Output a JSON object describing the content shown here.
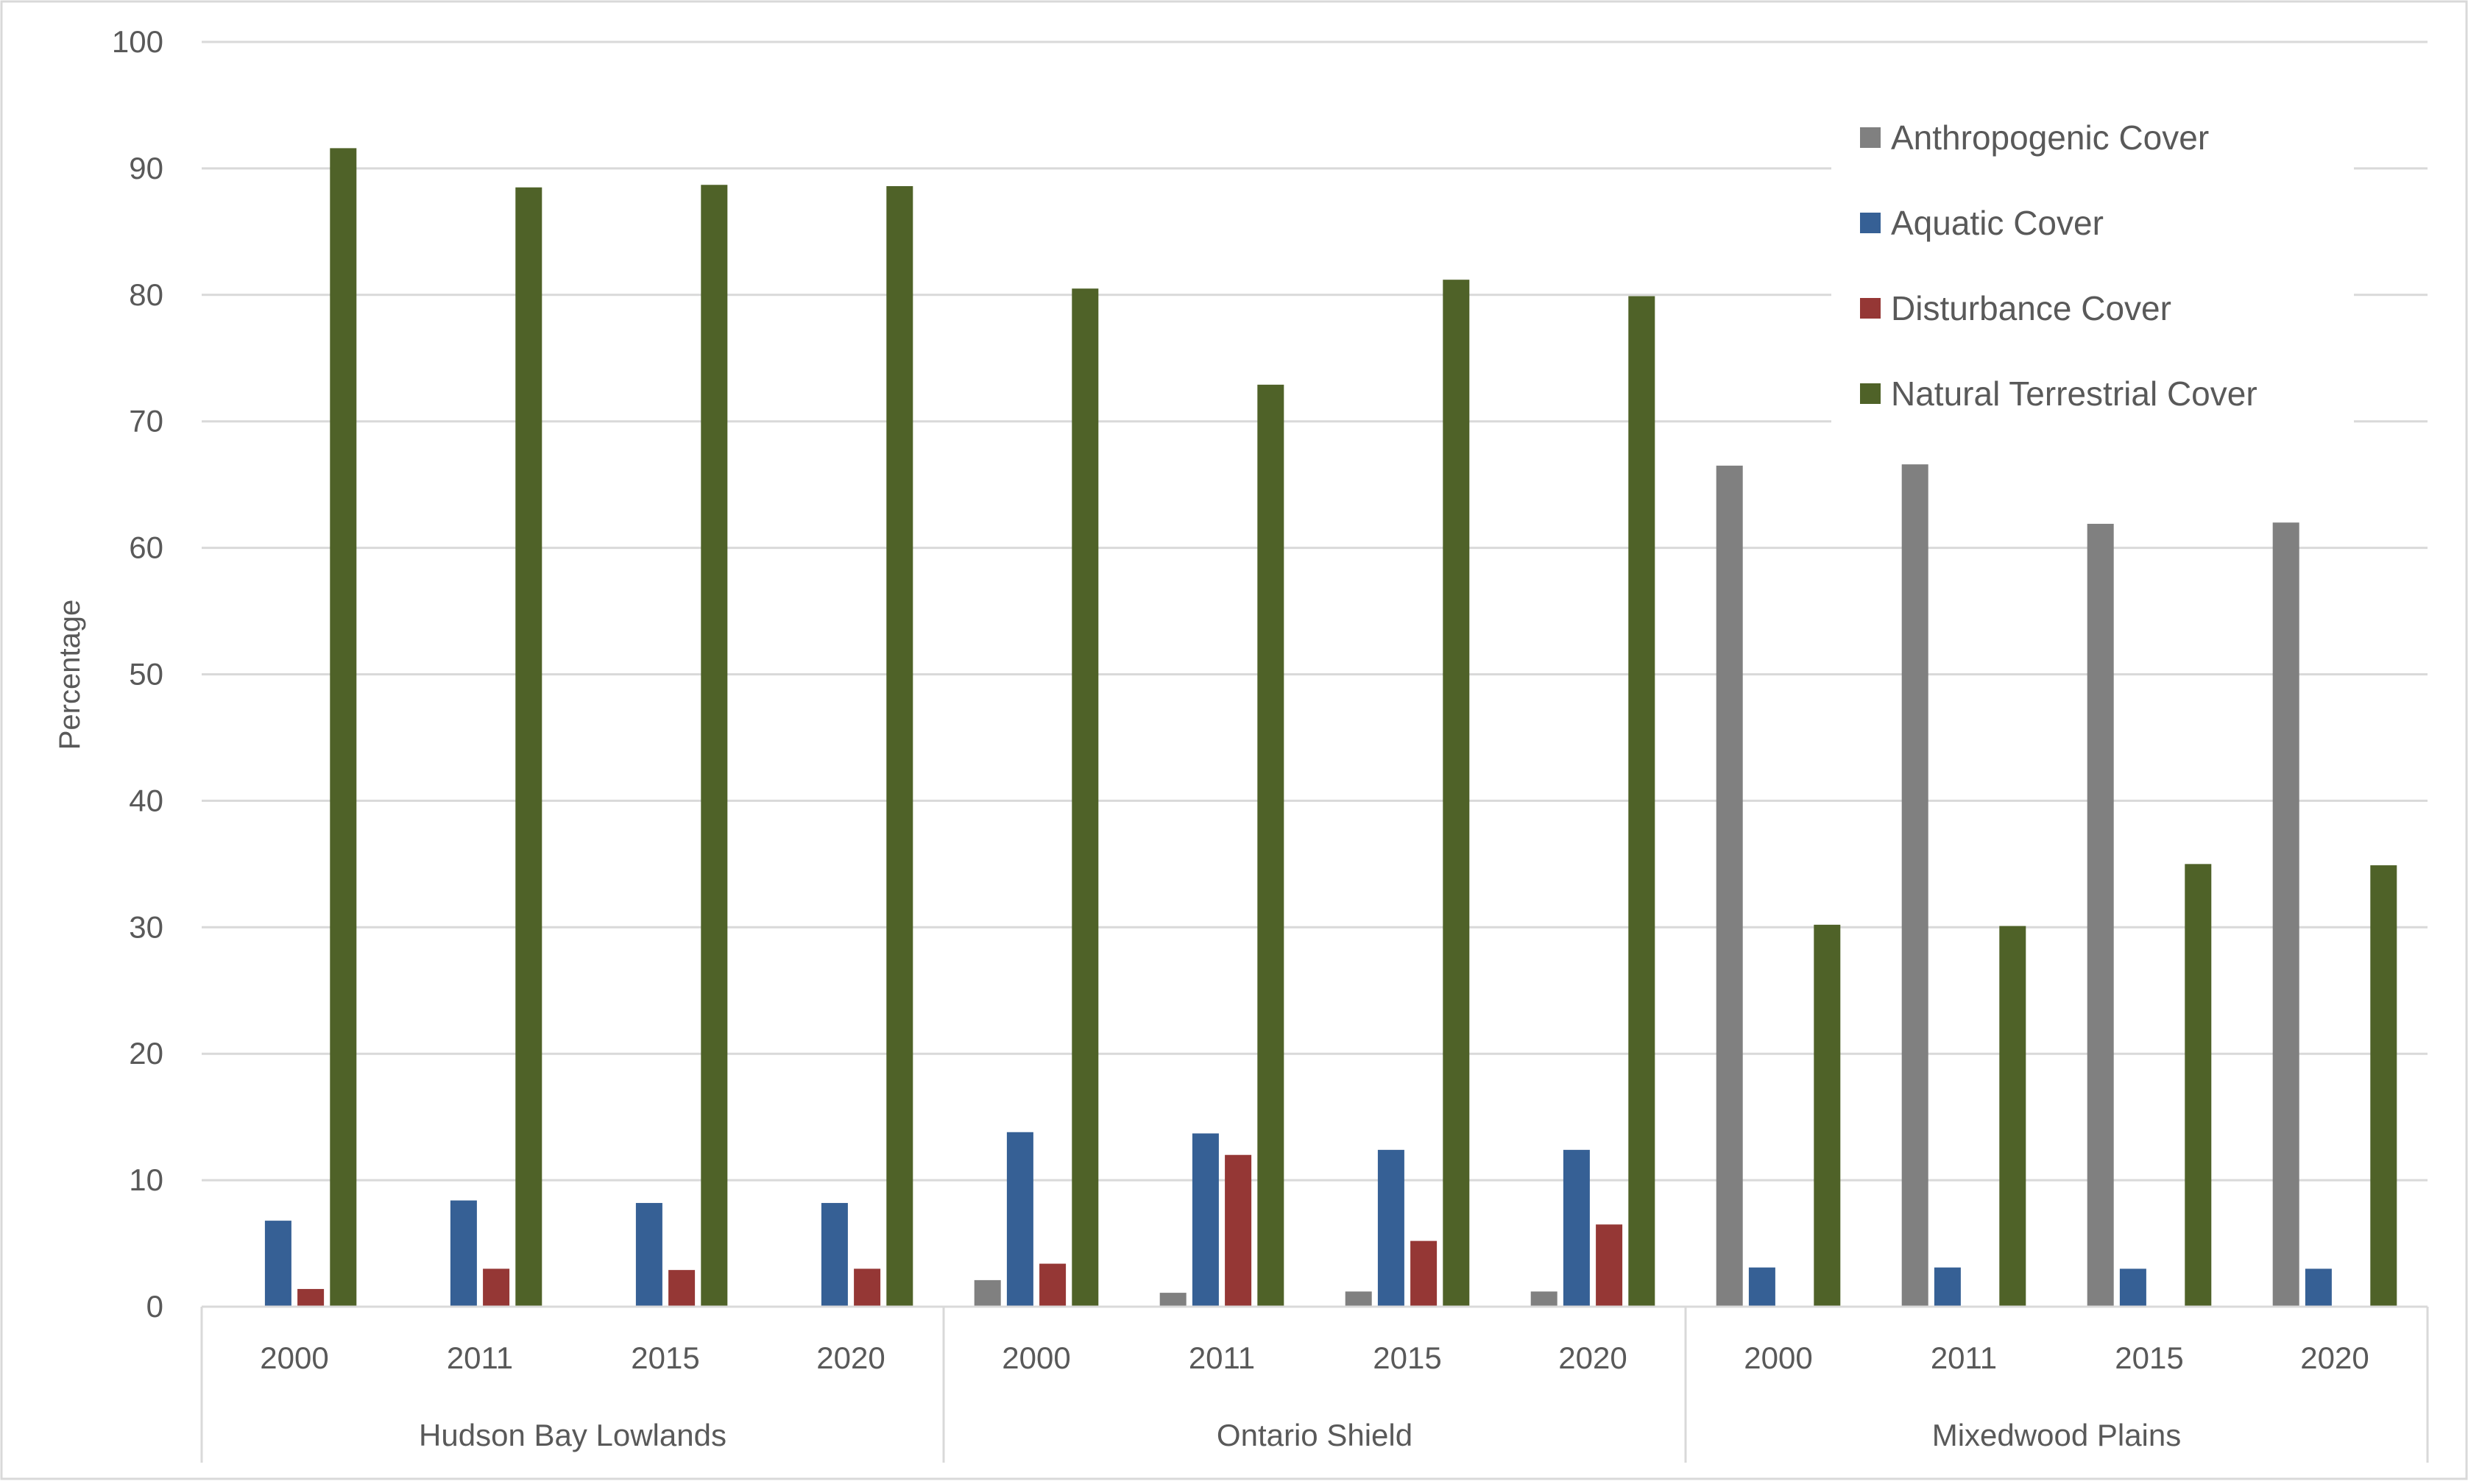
{
  "chart_data": {
    "type": "bar",
    "title": "",
    "xlabel": "",
    "ylabel": "Percentage",
    "ylim": [
      0,
      100
    ],
    "yticks": [
      0,
      10,
      20,
      30,
      40,
      50,
      60,
      70,
      80,
      90,
      100
    ],
    "grid": true,
    "legend_position": "top-right",
    "groups": [
      {
        "name": "Hudson Bay Lowlands",
        "categories": [
          "2000",
          "2011",
          "2015",
          "2020"
        ]
      },
      {
        "name": "Ontario Shield",
        "categories": [
          "2000",
          "2011",
          "2015",
          "2020"
        ]
      },
      {
        "name": "Mixedwood Plains",
        "categories": [
          "2000",
          "2011",
          "2015",
          "2020"
        ]
      }
    ],
    "series": [
      {
        "name": "Anthropogenic Cover",
        "color": "#808080",
        "values": [
          0,
          0,
          0,
          0,
          2.1,
          1.1,
          1.2,
          1.2,
          66.5,
          66.6,
          61.9,
          62.0
        ]
      },
      {
        "name": "Aquatic Cover",
        "color": "#366095",
        "values": [
          6.8,
          8.4,
          8.2,
          8.2,
          13.8,
          13.7,
          12.4,
          12.4,
          3.1,
          3.1,
          3.0,
          3.0
        ]
      },
      {
        "name": "Disturbance Cover",
        "color": "#953735",
        "values": [
          1.4,
          3.0,
          2.9,
          3.0,
          3.4,
          12.0,
          5.2,
          6.5,
          0,
          0,
          0,
          0
        ]
      },
      {
        "name": "Natural Terrestrial Cover",
        "color": "#4f6228",
        "values": [
          91.6,
          88.5,
          88.7,
          88.6,
          80.5,
          72.9,
          81.2,
          79.9,
          30.2,
          30.1,
          35.0,
          34.9
        ]
      }
    ]
  }
}
